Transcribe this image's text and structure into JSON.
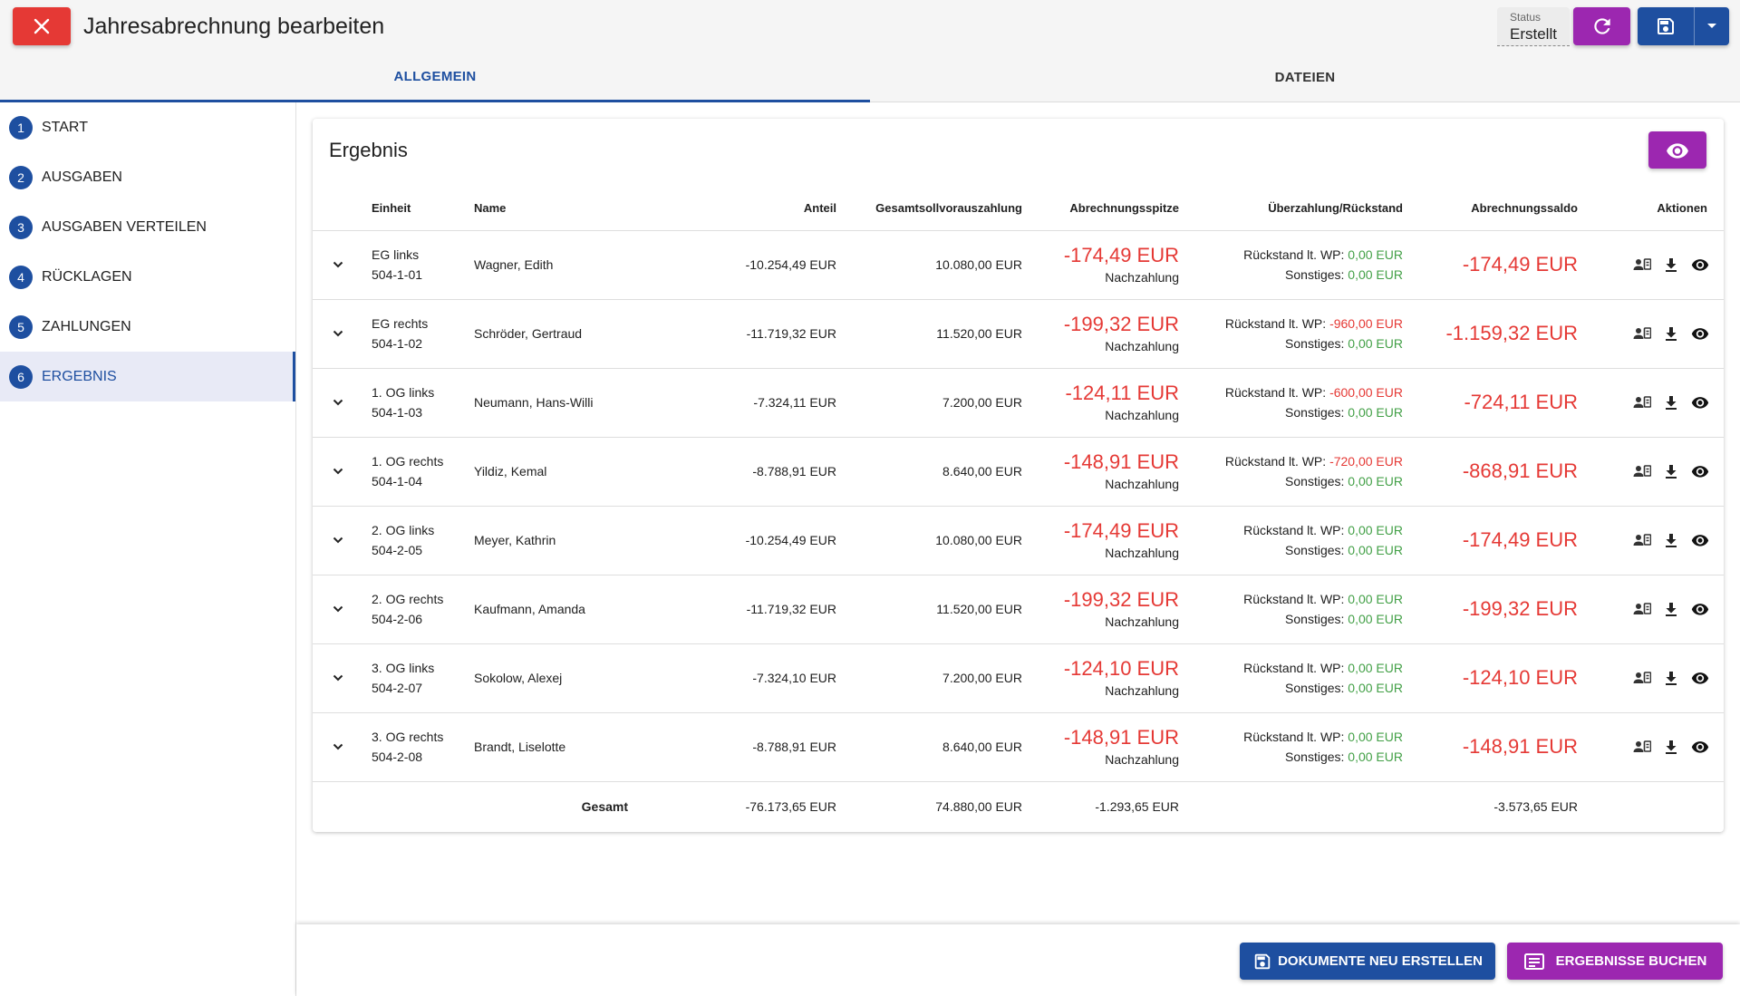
{
  "header": {
    "title": "Jahresabrechnung bearbeiten",
    "status_label": "Status",
    "status_value": "Erstellt"
  },
  "tabs": [
    {
      "label": "ALLGEMEIN",
      "active": true
    },
    {
      "label": "DATEIEN",
      "active": false
    }
  ],
  "steps": [
    {
      "num": "1",
      "label": "START"
    },
    {
      "num": "2",
      "label": "AUSGABEN"
    },
    {
      "num": "3",
      "label": "AUSGABEN VERTEILEN"
    },
    {
      "num": "4",
      "label": "RÜCKLAGEN"
    },
    {
      "num": "5",
      "label": "ZAHLUNGEN"
    },
    {
      "num": "6",
      "label": "ERGEBNIS"
    }
  ],
  "card": {
    "title": "Ergebnis",
    "columns": {
      "einheit": "Einheit",
      "name": "Name",
      "anteil": "Anteil",
      "gesamtsoll": "Gesamtsollvorauszahlung",
      "spitze": "Abrechnungsspitze",
      "ueberzahlung": "Überzahlung/Rückstand",
      "saldo": "Abrechnungssaldo",
      "aktionen": "Aktionen"
    },
    "rows": [
      {
        "unit1": "EG links",
        "unit2": "504-1-01",
        "name": "Wagner, Edith",
        "anteil": "-10.254,49 EUR",
        "gesamtsoll": "10.080,00 EUR",
        "spitze": "-174,49 EUR",
        "spitze_sub": "Nachzahlung",
        "rueck_label": "Rückstand lt. WP:",
        "rueck_value": "0,00 EUR",
        "rueck_neg": false,
        "sonst_label": "Sonstiges:",
        "sonst_value": "0,00 EUR",
        "saldo": "-174,49 EUR"
      },
      {
        "unit1": "EG rechts",
        "unit2": "504-1-02",
        "name": "Schröder, Gertraud",
        "anteil": "-11.719,32 EUR",
        "gesamtsoll": "11.520,00 EUR",
        "spitze": "-199,32 EUR",
        "spitze_sub": "Nachzahlung",
        "rueck_label": "Rückstand lt. WP:",
        "rueck_value": "-960,00 EUR",
        "rueck_neg": true,
        "sonst_label": "Sonstiges:",
        "sonst_value": "0,00 EUR",
        "saldo": "-1.159,32 EUR"
      },
      {
        "unit1": "1. OG links",
        "unit2": "504-1-03",
        "name": "Neumann, Hans-Willi",
        "anteil": "-7.324,11 EUR",
        "gesamtsoll": "7.200,00 EUR",
        "spitze": "-124,11 EUR",
        "spitze_sub": "Nachzahlung",
        "rueck_label": "Rückstand lt. WP:",
        "rueck_value": "-600,00 EUR",
        "rueck_neg": true,
        "sonst_label": "Sonstiges:",
        "sonst_value": "0,00 EUR",
        "saldo": "-724,11 EUR"
      },
      {
        "unit1": "1. OG rechts",
        "unit2": "504-1-04",
        "name": "Yildiz, Kemal",
        "anteil": "-8.788,91 EUR",
        "gesamtsoll": "8.640,00 EUR",
        "spitze": "-148,91 EUR",
        "spitze_sub": "Nachzahlung",
        "rueck_label": "Rückstand lt. WP:",
        "rueck_value": "-720,00 EUR",
        "rueck_neg": true,
        "sonst_label": "Sonstiges:",
        "sonst_value": "0,00 EUR",
        "saldo": "-868,91 EUR"
      },
      {
        "unit1": "2. OG links",
        "unit2": "504-2-05",
        "name": "Meyer, Kathrin",
        "anteil": "-10.254,49 EUR",
        "gesamtsoll": "10.080,00 EUR",
        "spitze": "-174,49 EUR",
        "spitze_sub": "Nachzahlung",
        "rueck_label": "Rückstand lt. WP:",
        "rueck_value": "0,00 EUR",
        "rueck_neg": false,
        "sonst_label": "Sonstiges:",
        "sonst_value": "0,00 EUR",
        "saldo": "-174,49 EUR"
      },
      {
        "unit1": "2. OG rechts",
        "unit2": "504-2-06",
        "name": "Kaufmann, Amanda",
        "anteil": "-11.719,32 EUR",
        "gesamtsoll": "11.520,00 EUR",
        "spitze": "-199,32 EUR",
        "spitze_sub": "Nachzahlung",
        "rueck_label": "Rückstand lt. WP:",
        "rueck_value": "0,00 EUR",
        "rueck_neg": false,
        "sonst_label": "Sonstiges:",
        "sonst_value": "0,00 EUR",
        "saldo": "-199,32 EUR"
      },
      {
        "unit1": "3. OG links",
        "unit2": "504-2-07",
        "name": "Sokolow, Alexej",
        "anteil": "-7.324,10 EUR",
        "gesamtsoll": "7.200,00 EUR",
        "spitze": "-124,10 EUR",
        "spitze_sub": "Nachzahlung",
        "rueck_label": "Rückstand lt. WP:",
        "rueck_value": "0,00 EUR",
        "rueck_neg": false,
        "sonst_label": "Sonstiges:",
        "sonst_value": "0,00 EUR",
        "saldo": "-124,10 EUR"
      },
      {
        "unit1": "3. OG rechts",
        "unit2": "504-2-08",
        "name": "Brandt, Liselotte",
        "anteil": "-8.788,91 EUR",
        "gesamtsoll": "8.640,00 EUR",
        "spitze": "-148,91 EUR",
        "spitze_sub": "Nachzahlung",
        "rueck_label": "Rückstand lt. WP:",
        "rueck_value": "0,00 EUR",
        "rueck_neg": false,
        "sonst_label": "Sonstiges:",
        "sonst_value": "0,00 EUR",
        "saldo": "-148,91 EUR"
      }
    ],
    "totals": {
      "label": "Gesamt",
      "anteil": "-76.173,65 EUR",
      "gesamtsoll": "74.880,00 EUR",
      "spitze": "-1.293,65 EUR",
      "saldo": "-3.573,65 EUR"
    }
  },
  "bottom": {
    "docs_label": "DOKUMENTE NEU ERSTELLEN",
    "book_label": "ERGEBNISSE BUCHEN"
  },
  "icons": {
    "close": "close-icon",
    "refresh": "refresh-icon",
    "save": "save-icon",
    "menu": "caret-down-icon",
    "view": "eye-icon",
    "expand": "chevron-down-icon",
    "person": "person-card-icon",
    "download": "download-icon",
    "docs": "document-save-icon",
    "book": "ledger-icon"
  },
  "colors": {
    "primary": "#1e4fa0",
    "accent": "#9c27b0",
    "danger": "#e53935",
    "positive": "#43a047"
  }
}
